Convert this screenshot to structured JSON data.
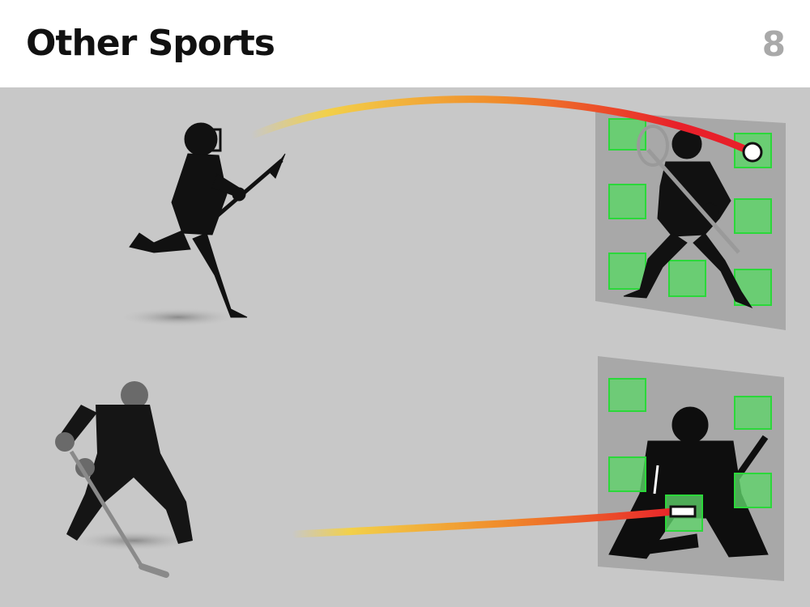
{
  "header": {
    "title": "Other Sports",
    "page_number": "8"
  },
  "colors": {
    "background": "#c8c8c8",
    "target_fill": "#5fd36a",
    "target_stroke": "#2bd83a",
    "trail_start": "#f2d04a",
    "trail_mid": "#f08a2a",
    "trail_end": "#e8202a",
    "silhouette": "#111111"
  },
  "icons": {
    "lacrosse_shooter": "lacrosse-player-icon",
    "lacrosse_goalie": "lacrosse-goalie-icon",
    "hockey_shooter": "hockey-player-icon",
    "hockey_goalie": "hockey-goalie-icon",
    "ball": "lacrosse-ball-icon",
    "puck": "hockey-puck-icon"
  }
}
